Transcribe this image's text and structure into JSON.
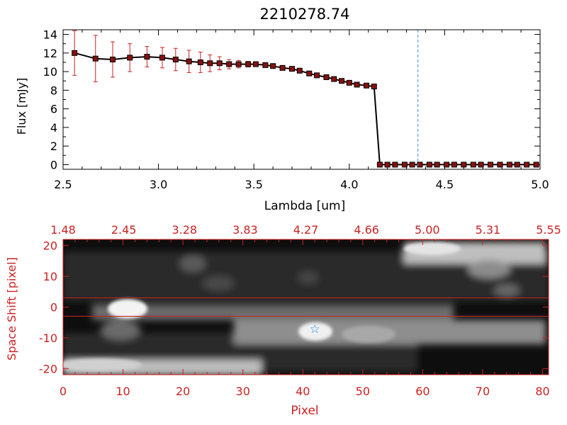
{
  "chart_data": [
    {
      "type": "line",
      "title": "2210278.74",
      "xlabel": "Lambda [um]",
      "ylabel": "Flux [mJy]",
      "xlim": [
        2.5,
        5.0
      ],
      "ylim": [
        -0.5,
        14.5
      ],
      "xticks": [
        "2.5",
        "3.0",
        "3.5",
        "4.0",
        "4.5",
        "5.0"
      ],
      "yticks": [
        "0",
        "2",
        "4",
        "6",
        "8",
        "10",
        "12",
        "14"
      ],
      "vertical_marker": 4.36,
      "series": [
        {
          "x": [
            2.56,
            2.67,
            2.76,
            2.85,
            2.94,
            3.02,
            3.09,
            3.16,
            3.22,
            3.27,
            3.32,
            3.37,
            3.42,
            3.47,
            3.51,
            3.56,
            3.6,
            3.65,
            3.7,
            3.74,
            3.79,
            3.83,
            3.88,
            3.92,
            3.96,
            4.0,
            4.04,
            4.09,
            4.13,
            4.16,
            4.2,
            4.24,
            4.29,
            4.33,
            4.37,
            4.42,
            4.46,
            4.51,
            4.55,
            4.6,
            4.65,
            4.69,
            4.74,
            4.79,
            4.84,
            4.88,
            4.93,
            4.98
          ],
          "y": [
            12.0,
            11.4,
            11.3,
            11.5,
            11.6,
            11.5,
            11.3,
            11.1,
            11.0,
            10.9,
            10.9,
            10.8,
            10.8,
            10.8,
            10.8,
            10.7,
            10.6,
            10.4,
            10.3,
            10.1,
            9.8,
            9.6,
            9.4,
            9.2,
            9.0,
            8.8,
            8.6,
            8.5,
            8.4,
            0,
            0,
            0,
            0,
            0,
            0,
            0,
            0,
            0,
            0,
            0,
            0,
            0,
            0,
            0,
            0,
            0,
            0,
            0
          ],
          "yerr": [
            2.4,
            2.5,
            1.9,
            1.5,
            1.1,
            1.1,
            1.2,
            1.2,
            1.1,
            0.9,
            0.7,
            0.5,
            0.4,
            0.3,
            0.2,
            0.2,
            0.2,
            0.1,
            0.1,
            0.1,
            0.1,
            0.1,
            0.1,
            0.1,
            0.1,
            0.1,
            0.1,
            0.1,
            0.1,
            0,
            0,
            0,
            0,
            0,
            0,
            0,
            0,
            0,
            0,
            0,
            0,
            0,
            0,
            0,
            0,
            0,
            0,
            0
          ]
        }
      ]
    },
    {
      "type": "heatmap",
      "xlabel": "Pixel",
      "ylabel": "Space Shift [pixel]",
      "xlim": [
        0,
        81
      ],
      "ylim": [
        -22,
        22
      ],
      "xticks": [
        "0",
        "10",
        "20",
        "30",
        "40",
        "50",
        "60",
        "70",
        "80"
      ],
      "yticks": [
        "-20",
        "-10",
        "0",
        "10",
        "20"
      ],
      "top_axis_ticks": [
        "1.48",
        "2.45",
        "3.28",
        "3.83",
        "4.27",
        "4.66",
        "5.00",
        "5.31",
        "5.55"
      ],
      "extraction_window": [
        -3,
        3
      ],
      "star_marker": [
        42,
        -7
      ]
    }
  ]
}
